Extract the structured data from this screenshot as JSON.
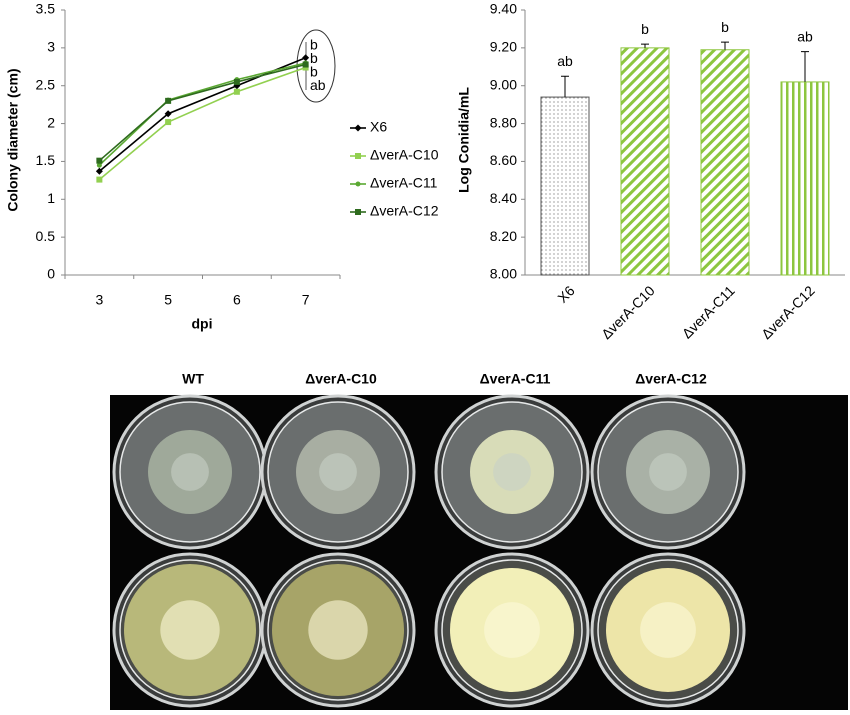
{
  "chart_data": [
    {
      "type": "line",
      "x_label": "dpi",
      "y_label": "Colony diameter (cm)",
      "categories": [
        "3",
        "5",
        "6",
        "7"
      ],
      "ylim": [
        0,
        3.5
      ],
      "yticks": [
        0,
        0.5,
        1,
        1.5,
        2,
        2.5,
        3,
        3.5
      ],
      "series": [
        {
          "name": "X6",
          "color": "#000000",
          "marker": "diamond",
          "values": [
            1.37,
            2.13,
            2.5,
            2.87
          ]
        },
        {
          "name": "ΔverA-C10",
          "color": "#92d050",
          "marker": "square",
          "values": [
            1.26,
            2.02,
            2.42,
            2.74
          ]
        },
        {
          "name": "ΔverA-C11",
          "color": "#5aa832",
          "marker": "circle",
          "values": [
            1.45,
            2.31,
            2.58,
            2.8
          ]
        },
        {
          "name": "ΔverA-C12",
          "color": "#2e6b1e",
          "marker": "square",
          "values": [
            1.51,
            2.3,
            2.55,
            2.78
          ]
        }
      ],
      "annotations": [
        "b",
        "b",
        "b",
        "ab"
      ]
    },
    {
      "type": "bar",
      "y_label": "Log Conidia/mL",
      "categories": [
        "X6",
        "ΔverA-C10",
        "ΔverA-C11",
        "ΔverA-C12"
      ],
      "values": [
        8.94,
        9.2,
        9.19,
        9.02
      ],
      "errors": [
        0.11,
        0.02,
        0.04,
        0.16
      ],
      "annotations": [
        "ab",
        "b",
        "b",
        "ab"
      ],
      "color": "#8dc63f",
      "patterns": [
        "dots",
        "diagonal",
        "diagonal",
        "vertical"
      ],
      "ylim": [
        8,
        9.4
      ],
      "yticks": [
        {
          "value": 8,
          "label": "8.00"
        },
        {
          "value": 8.2,
          "label": "8.20"
        },
        {
          "value": 8.4,
          "label": "8.40"
        },
        {
          "value": 8.6,
          "label": "8.60"
        },
        {
          "value": 8.8,
          "label": "8.80"
        },
        {
          "value": 9,
          "label": "9.00"
        },
        {
          "value": 9.2,
          "label": "9.20"
        },
        {
          "value": 9.4,
          "label": "9.40"
        }
      ]
    }
  ],
  "photo_panel": {
    "labels": [
      "WT",
      "ΔverA-C10",
      "ΔverA-C11",
      "ΔverA-C12"
    ]
  }
}
